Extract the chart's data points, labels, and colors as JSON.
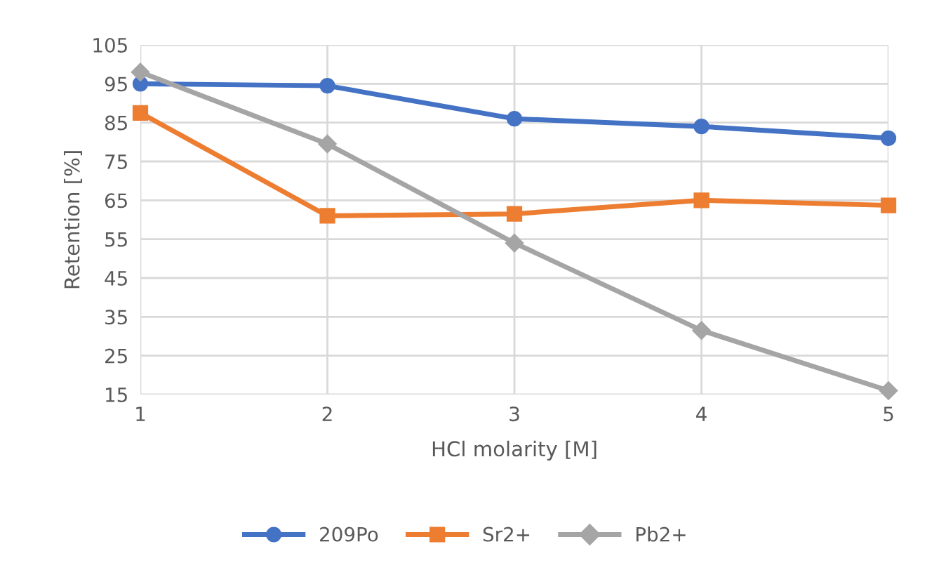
{
  "chart_data": {
    "type": "line",
    "xlabel": "HCl molarity [M]",
    "ylabel": "Retention [%]",
    "x": [
      1,
      2,
      3,
      4,
      5
    ],
    "series": [
      {
        "name": "209Po",
        "color": "#4472c4",
        "marker": "circle",
        "values": [
          95,
          94.5,
          86,
          84,
          81
        ]
      },
      {
        "name": "Sr2+",
        "color": "#ed7d31",
        "marker": "square",
        "values": [
          87.5,
          61,
          61.5,
          65,
          63.7
        ]
      },
      {
        "name": "Pb2+",
        "color": "#a5a5a5",
        "marker": "diamond",
        "values": [
          98,
          79.5,
          54,
          31.5,
          16
        ]
      }
    ],
    "xlim": [
      1,
      5
    ],
    "xticks": [
      1,
      2,
      3,
      4,
      5
    ],
    "ylim": [
      15,
      105
    ],
    "yticks": [
      15,
      25,
      35,
      45,
      55,
      65,
      75,
      85,
      95,
      105
    ],
    "grid": true,
    "legend": "bottom",
    "line_style": "solid"
  }
}
